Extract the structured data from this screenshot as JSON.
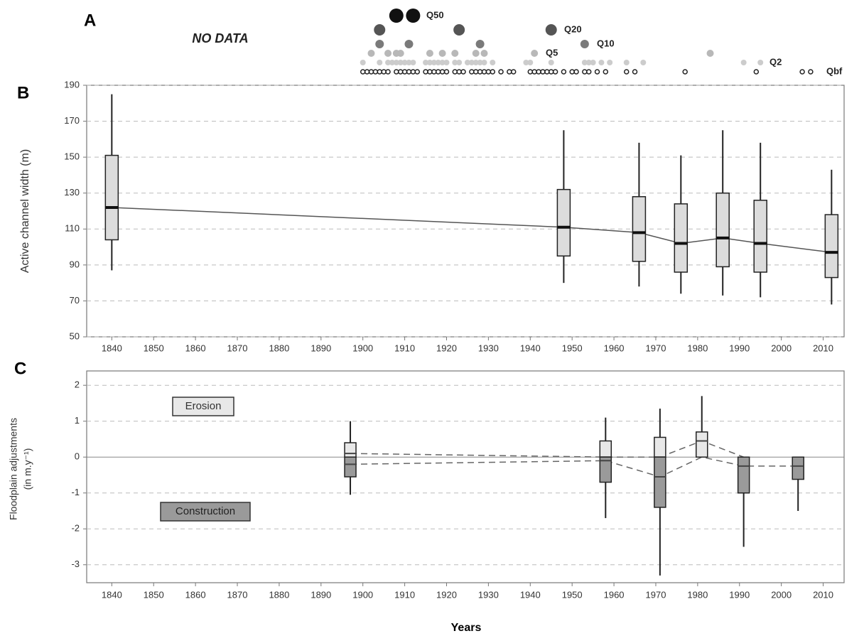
{
  "chart_data": [
    {
      "type": "dot",
      "panel_label": "A",
      "annotation": "NO DATA",
      "xlim": [
        1834,
        2015
      ],
      "series": [
        {
          "name": "Q50",
          "color": "#111111",
          "x": [
            1908,
            1912
          ]
        },
        {
          "name": "Q20",
          "color": "#555555",
          "x": [
            1904,
            1923,
            1945
          ]
        },
        {
          "name": "Q10",
          "color": "#7a7a7a",
          "x": [
            1904,
            1911,
            1928,
            1953
          ]
        },
        {
          "name": "Q5",
          "color": "#b8b8b8",
          "x": [
            1902,
            1906,
            1908,
            1909,
            1916,
            1919,
            1922,
            1927,
            1929,
            1941,
            1983
          ]
        },
        {
          "name": "Q2",
          "color": "#cccccc",
          "x": [
            1900,
            1904,
            1906,
            1907,
            1908,
            1909,
            1910,
            1911,
            1912,
            1915,
            1916,
            1917,
            1918,
            1919,
            1920,
            1922,
            1923,
            1925,
            1926,
            1927,
            1928,
            1929,
            1931,
            1939,
            1940,
            1945,
            1953,
            1954,
            1955,
            1957,
            1959,
            1963,
            1967,
            1991,
            1995
          ]
        },
        {
          "name": "Qbf",
          "color": "#222222",
          "hollow": true,
          "x": [
            1900,
            1901,
            1902,
            1903,
            1904,
            1905,
            1906,
            1908,
            1909,
            1910,
            1911,
            1912,
            1913,
            1915,
            1916,
            1917,
            1918,
            1919,
            1920,
            1922,
            1923,
            1924,
            1926,
            1927,
            1928,
            1929,
            1930,
            1931,
            1933,
            1935,
            1936,
            1940,
            1941,
            1942,
            1943,
            1944,
            1945,
            1946,
            1948,
            1950,
            1951,
            1953,
            1954,
            1956,
            1958,
            1963,
            1965,
            1977,
            1994,
            2005,
            2007
          ]
        }
      ]
    },
    {
      "type": "box",
      "panel_label": "B",
      "y_label": "Active channel width (m)",
      "xlim": [
        1834,
        2015
      ],
      "xticks": [
        1840,
        1850,
        1860,
        1870,
        1880,
        1890,
        1900,
        1910,
        1920,
        1930,
        1940,
        1950,
        1960,
        1970,
        1980,
        1990,
        2000,
        2010
      ],
      "ylim": [
        50,
        190
      ],
      "yticks": [
        50,
        70,
        90,
        110,
        130,
        150,
        170,
        190
      ],
      "grid": true,
      "median_line": "solid",
      "x": [
        1840,
        1948,
        1966,
        1976,
        1986,
        1995,
        2012
      ],
      "series": [
        {
          "color": "#dcdcdc",
          "whisker_low": [
            87,
            80,
            78,
            74,
            73,
            72,
            68
          ],
          "q1": [
            104,
            95,
            92,
            86,
            89,
            86,
            83
          ],
          "median": [
            122,
            111,
            108,
            102,
            105,
            102,
            97
          ],
          "q3": [
            151,
            132,
            128,
            124,
            130,
            126,
            118
          ],
          "whisker_high": [
            185,
            165,
            158,
            151,
            165,
            158,
            143
          ]
        }
      ]
    },
    {
      "type": "box",
      "panel_label": "C",
      "y_label_lines": [
        "Floodplain adjustments",
        "(in m.y⁻¹)"
      ],
      "x_label": "Years",
      "xlim": [
        1834,
        2015
      ],
      "xticks": [
        1840,
        1850,
        1860,
        1870,
        1880,
        1890,
        1900,
        1910,
        1920,
        1930,
        1940,
        1950,
        1960,
        1970,
        1980,
        1990,
        2000,
        2010
      ],
      "ylim": [
        -3.5,
        2.4
      ],
      "yticks": [
        -3,
        -2,
        -1,
        0,
        1,
        2
      ],
      "grid": true,
      "median_line": "dashed",
      "x": [
        1897,
        1958,
        1971,
        1981,
        1991,
        2004
      ],
      "series": [
        {
          "name": "Erosion",
          "color": "#e8e8e8",
          "q1": [
            0,
            0,
            0,
            0,
            null,
            null
          ],
          "median": [
            0.1,
            0,
            0,
            0.45,
            0,
            null
          ],
          "q3": [
            0.4,
            0.45,
            0.55,
            0.7,
            null,
            null
          ],
          "whisker_high": [
            1.0,
            1.1,
            1.35,
            1.7,
            null,
            null
          ]
        },
        {
          "name": "Construction",
          "color": "#9a9a9a",
          "whisker_low": [
            -1.05,
            -1.7,
            -3.3,
            null,
            -2.5,
            -1.5
          ],
          "q1": [
            -0.55,
            -0.7,
            -1.4,
            null,
            -1.0,
            -0.62
          ],
          "median": [
            -0.2,
            -0.1,
            -0.55,
            0,
            -0.25,
            -0.25
          ],
          "q3": [
            0,
            0,
            0,
            null,
            0,
            0
          ]
        }
      ]
    }
  ]
}
